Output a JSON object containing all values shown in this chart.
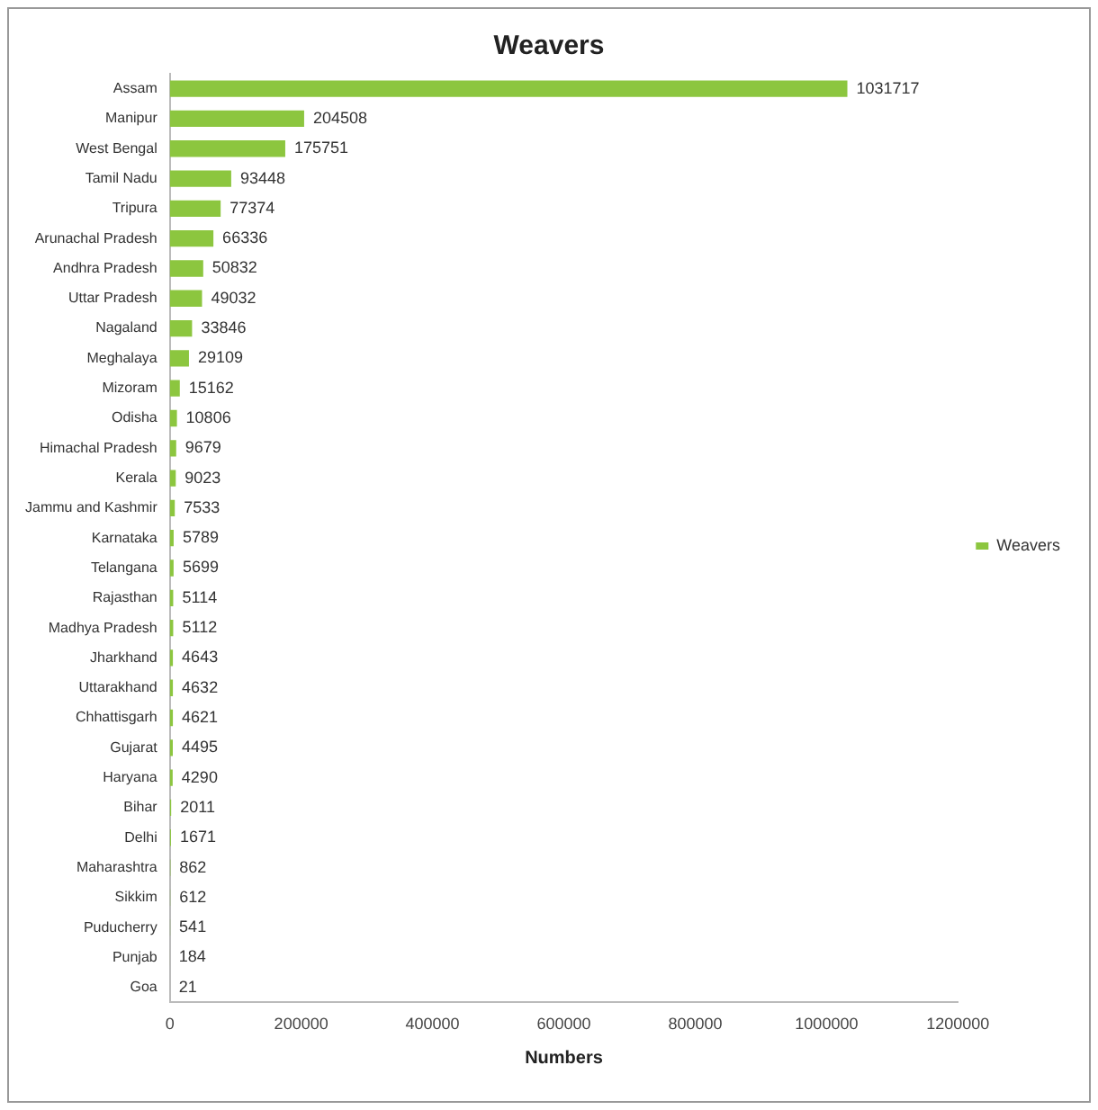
{
  "chart_data": {
    "type": "bar",
    "orientation": "horizontal",
    "title": "Weavers",
    "xlabel": "Numbers",
    "categories": [
      "Assam",
      "Manipur",
      "West Bengal",
      "Tamil Nadu",
      "Tripura",
      "Arunachal Pradesh",
      "Andhra Pradesh",
      "Uttar Pradesh",
      "Nagaland",
      "Meghalaya",
      "Mizoram",
      "Odisha",
      "Himachal Pradesh",
      "Kerala",
      "Jammu and Kashmir",
      "Karnataka",
      "Telangana",
      "Rajasthan",
      "Madhya Pradesh",
      "Jharkhand",
      "Uttarakhand",
      "Chhattisgarh",
      "Gujarat",
      "Haryana",
      "Bihar",
      "Delhi",
      "Maharashtra",
      "Sikkim",
      "Puducherry",
      "Punjab",
      "Goa"
    ],
    "series": [
      {
        "name": "Weavers",
        "color": "#8cc63f",
        "values": [
          1031717,
          204508,
          175751,
          93448,
          77374,
          66336,
          50832,
          49032,
          33846,
          29109,
          15162,
          10806,
          9679,
          9023,
          7533,
          5789,
          5699,
          5114,
          5112,
          4643,
          4632,
          4621,
          4495,
          4290,
          2011,
          1671,
          862,
          612,
          541,
          184,
          21
        ]
      }
    ],
    "xlim": [
      0,
      1200000
    ],
    "xticks": [
      0,
      200000,
      400000,
      600000,
      800000,
      1000000,
      1200000
    ],
    "grid": false,
    "legend": "right",
    "data_labels": true
  }
}
